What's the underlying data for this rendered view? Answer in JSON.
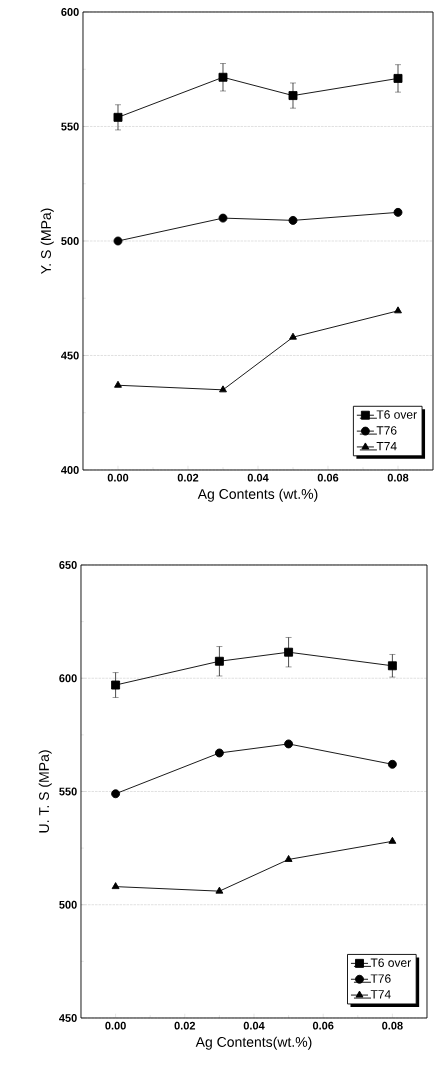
{
  "chart_data": [
    {
      "type": "line",
      "xlabel": "Ag Contents (wt.%)",
      "ylabel": "Y. S (MPa)",
      "x": [
        0,
        0.03,
        0.05,
        0.08
      ],
      "xlim": [
        -0.01,
        0.09
      ],
      "ylim": [
        400,
        600
      ],
      "xticks": [
        {
          "value": 0,
          "label": "0.00"
        },
        {
          "value": 0.02,
          "label": "0.02"
        },
        {
          "value": 0.04,
          "label": "0.04"
        },
        {
          "value": 0.06,
          "label": "0.06"
        },
        {
          "value": 0.08,
          "label": "0.08"
        }
      ],
      "yticks": [
        400,
        450,
        500,
        550,
        600
      ],
      "grid": "y",
      "legend": "bottom right",
      "series": [
        {
          "name": "T6 over",
          "color": "#000000",
          "marker": "square",
          "values": [
            554,
            571.5,
            563.5,
            571
          ],
          "errors": [
            5.5,
            6,
            5.5,
            6
          ]
        },
        {
          "name": "T76",
          "color": "#000000",
          "marker": "circle",
          "values": [
            500,
            510,
            509,
            512.5
          ]
        },
        {
          "name": "T74",
          "color": "#000000",
          "marker": "triangle",
          "values": [
            437,
            435,
            458,
            469.5
          ]
        }
      ]
    },
    {
      "type": "line",
      "xlabel": "Ag Contents(wt.%)",
      "ylabel": "U. T. S (MPa)",
      "x": [
        0,
        0.03,
        0.05,
        0.08
      ],
      "xlim": [
        -0.01,
        0.09
      ],
      "ylim": [
        450,
        650
      ],
      "xticks": [
        {
          "value": 0,
          "label": "0.00"
        },
        {
          "value": 0.02,
          "label": "0.02"
        },
        {
          "value": 0.04,
          "label": "0.04"
        },
        {
          "value": 0.06,
          "label": "0.06"
        },
        {
          "value": 0.08,
          "label": "0.08"
        }
      ],
      "yticks": [
        450,
        500,
        550,
        600,
        650
      ],
      "grid": "y",
      "legend": "bottom right",
      "series": [
        {
          "name": "T6 over",
          "color": "#000000",
          "marker": "square",
          "values": [
            597,
            607.5,
            611.5,
            605.5
          ],
          "errors": [
            5.5,
            6.5,
            6.5,
            5
          ]
        },
        {
          "name": "T76",
          "color": "#000000",
          "marker": "circle",
          "values": [
            549,
            567,
            571,
            562
          ]
        },
        {
          "name": "T74",
          "color": "#000000",
          "marker": "triangle",
          "values": [
            508,
            506,
            520,
            528
          ]
        }
      ]
    }
  ]
}
